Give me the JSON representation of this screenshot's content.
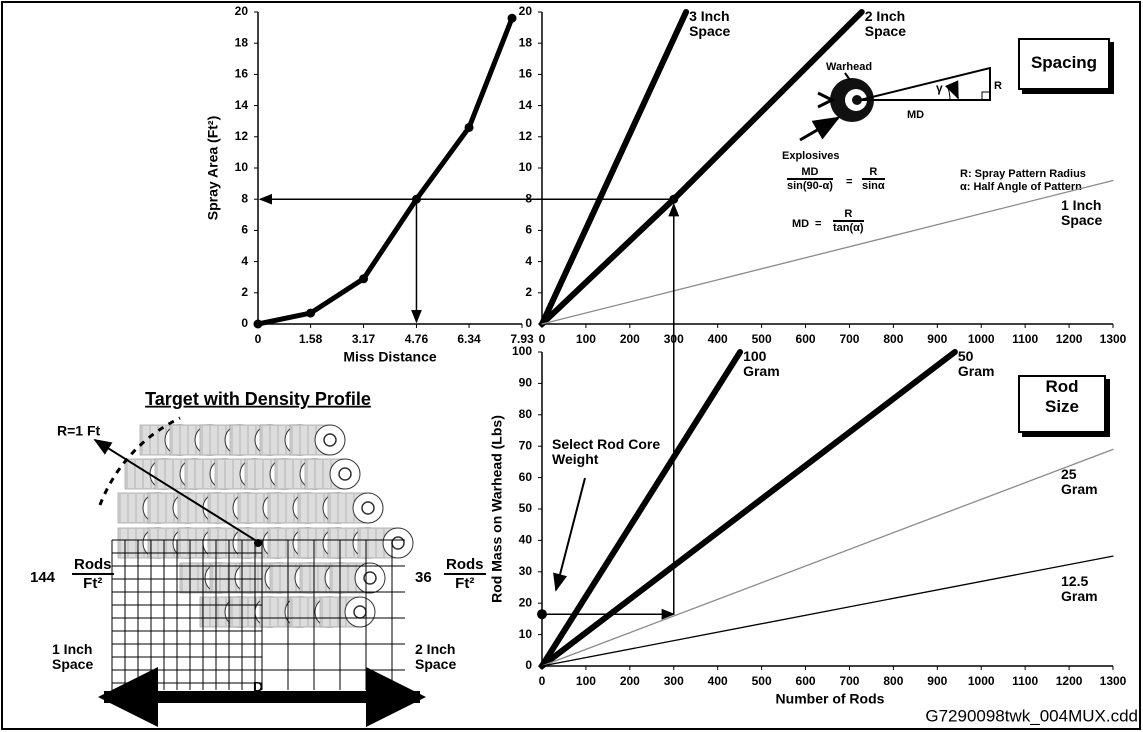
{
  "chart_data": [
    {
      "type": "line",
      "xlabel": "Miss Distance",
      "ylabel": "Spray Area (Ft²)",
      "xlim": [
        0,
        7.93
      ],
      "ylim": [
        0,
        20
      ],
      "xticks": [
        0,
        1.58,
        3.17,
        4.76,
        6.34,
        7.93
      ],
      "yticks": [
        0,
        2,
        4,
        6,
        8,
        10,
        12,
        14,
        16,
        18,
        20
      ],
      "series": [
        {
          "color": "#000000",
          "marker": "circle",
          "x": [
            0,
            1.58,
            3.17,
            4.76,
            6.34,
            7.63
          ],
          "values": [
            0,
            0.7,
            2.9,
            8,
            12.6,
            19.6
          ]
        }
      ]
    },
    {
      "type": "line",
      "title": "Spacing",
      "xlim": [
        0,
        1300
      ],
      "ylim": [
        0,
        20
      ],
      "xticks": [
        0,
        100,
        200,
        300,
        400,
        500,
        600,
        700,
        800,
        900,
        1000,
        1100,
        1200,
        1300
      ],
      "yticks": [
        0,
        2,
        4,
        6,
        8,
        10,
        12,
        14,
        16,
        18,
        20
      ],
      "series": [
        {
          "name": "3 Inch Space",
          "color": "#000000",
          "linestyle": "thick",
          "x": [
            0,
            328
          ],
          "values": [
            0,
            20
          ]
        },
        {
          "name": "2 Inch Space",
          "color": "#000000",
          "linestyle": "thick",
          "x": [
            0,
            300,
            728
          ],
          "values": [
            0,
            8,
            20
          ]
        },
        {
          "name": "1 Inch Space",
          "color": "#8a8a8a",
          "linestyle": "thin",
          "x": [
            0,
            1300
          ],
          "values": [
            0,
            9.2
          ]
        }
      ],
      "notes": {
        "warhead": "Warhead",
        "explosives": "Explosives",
        "md": "MD",
        "r": "R",
        "gamma": "γ",
        "eq1": {
          "left_num": "MD",
          "left_den": "sin(90-α)",
          "equals": "=",
          "right_num": "R",
          "right_den": "sinα"
        },
        "eq2": {
          "lhs": "MD",
          "equals": "=",
          "num": "R",
          "den": "tan(α)"
        },
        "legend_r": "R:  Spray Pattern Radius",
        "legend_a": "α:  Half Angle of Pattern"
      }
    },
    {
      "type": "line",
      "title": "Rod Size",
      "xlabel": "Number of Rods",
      "ylabel": "Rod Mass on Warhead (Lbs)",
      "xlim": [
        0,
        1300
      ],
      "ylim": [
        0,
        100
      ],
      "xticks": [
        0,
        100,
        200,
        300,
        400,
        500,
        600,
        700,
        800,
        900,
        1000,
        1100,
        1200,
        1300
      ],
      "yticks": [
        0,
        10,
        20,
        30,
        40,
        50,
        60,
        70,
        80,
        90,
        100
      ],
      "series": [
        {
          "name": "100 Gram",
          "color": "#000000",
          "linestyle": "thick",
          "x": [
            0,
            451
          ],
          "values": [
            0,
            100
          ]
        },
        {
          "name": "50 Gram",
          "color": "#000000",
          "linestyle": "thick",
          "x": [
            0,
            940
          ],
          "values": [
            0,
            100
          ]
        },
        {
          "name": "25 Gram",
          "color": "#8a8a8a",
          "linestyle": "thin",
          "x": [
            0,
            1300
          ],
          "values": [
            0,
            69
          ]
        },
        {
          "name": "12.5 Gram",
          "color": "#000000",
          "linestyle": "thin",
          "x": [
            0,
            1300
          ],
          "values": [
            0,
            35
          ]
        }
      ],
      "annotation": "Select Rod Core Weight",
      "selected": {
        "x": 0,
        "y": 16.5
      }
    }
  ],
  "target": {
    "title": "Target with Density Profile",
    "radius": "R=1 Ft",
    "left": {
      "count": "144",
      "num": "Rods",
      "den": "Ft²"
    },
    "right": {
      "count": "36",
      "num": "Rods",
      "den": "Ft²"
    },
    "left_space": "1 Inch Space",
    "right_space": "2 Inch Space",
    "dimension": "D"
  },
  "footer": "G7290098twk_004MUX.cdd"
}
